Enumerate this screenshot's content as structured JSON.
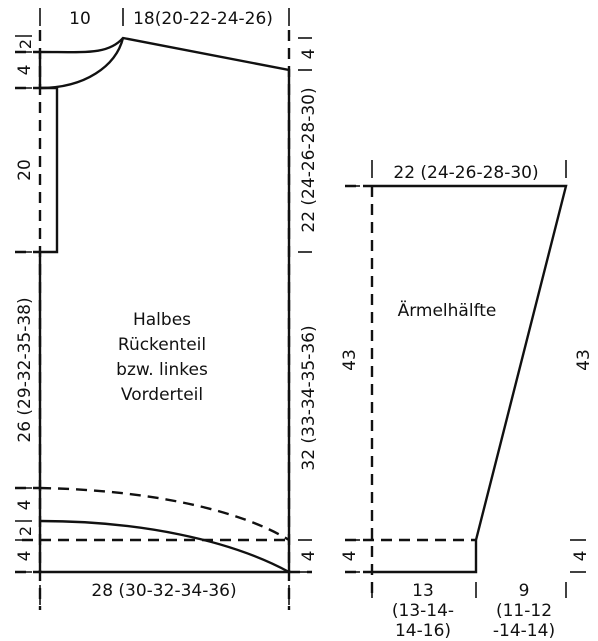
{
  "body_piece": {
    "label_lines": [
      "Halbes",
      "Rückenteil",
      "bzw. linkes",
      "Vorderteil"
    ],
    "top_left_width": "10",
    "top_right_width": "18(20-22-24-26)",
    "left_small_top": "2",
    "left_4_top": "4",
    "left_20": "20",
    "left_26": "26 (29-32-35-38)",
    "left_4_mid": "4",
    "left_small_bottom": "2",
    "left_4_bottom": "4",
    "right_4_top": "4",
    "right_22": "22 (24-26-28-30)",
    "right_32": "32 (33-34-35-36)",
    "right_4_bottom": "4",
    "bottom_width": "28 (30-32-34-36)"
  },
  "sleeve_piece": {
    "label": "Ärmelhälfte",
    "top_width": "22 (24-26-28-30)",
    "left_43": "43",
    "right_43": "43",
    "left_4": "4",
    "right_4": "4",
    "bottom_13_lines": [
      "13",
      "(13-14-",
      "14-16)"
    ],
    "bottom_9_lines": [
      "9",
      "(11-12",
      "-14-14)"
    ]
  }
}
